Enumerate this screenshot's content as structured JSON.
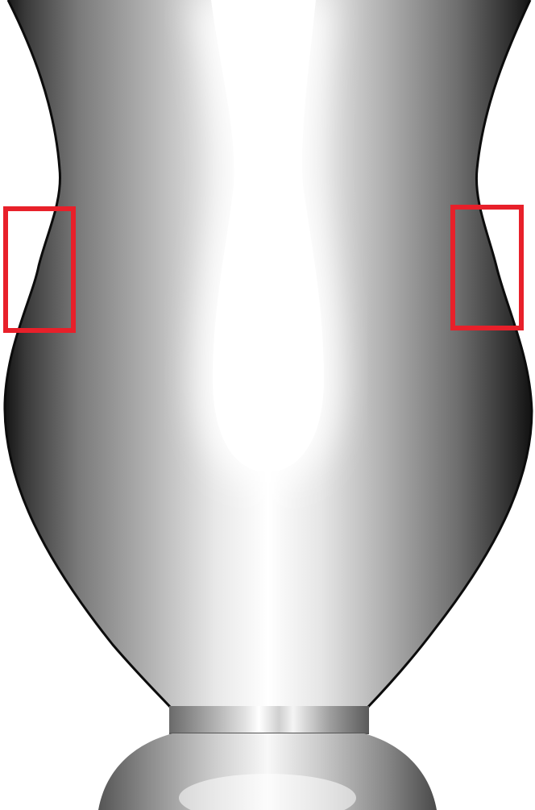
{
  "scene": {
    "background_color": "#ffffff",
    "object": "vase-render",
    "shading": "grayscale"
  },
  "highlights": {
    "box_color": "#e8202a",
    "boxes": [
      {
        "id": "left-contour-highlight"
      },
      {
        "id": "right-contour-highlight"
      }
    ]
  }
}
